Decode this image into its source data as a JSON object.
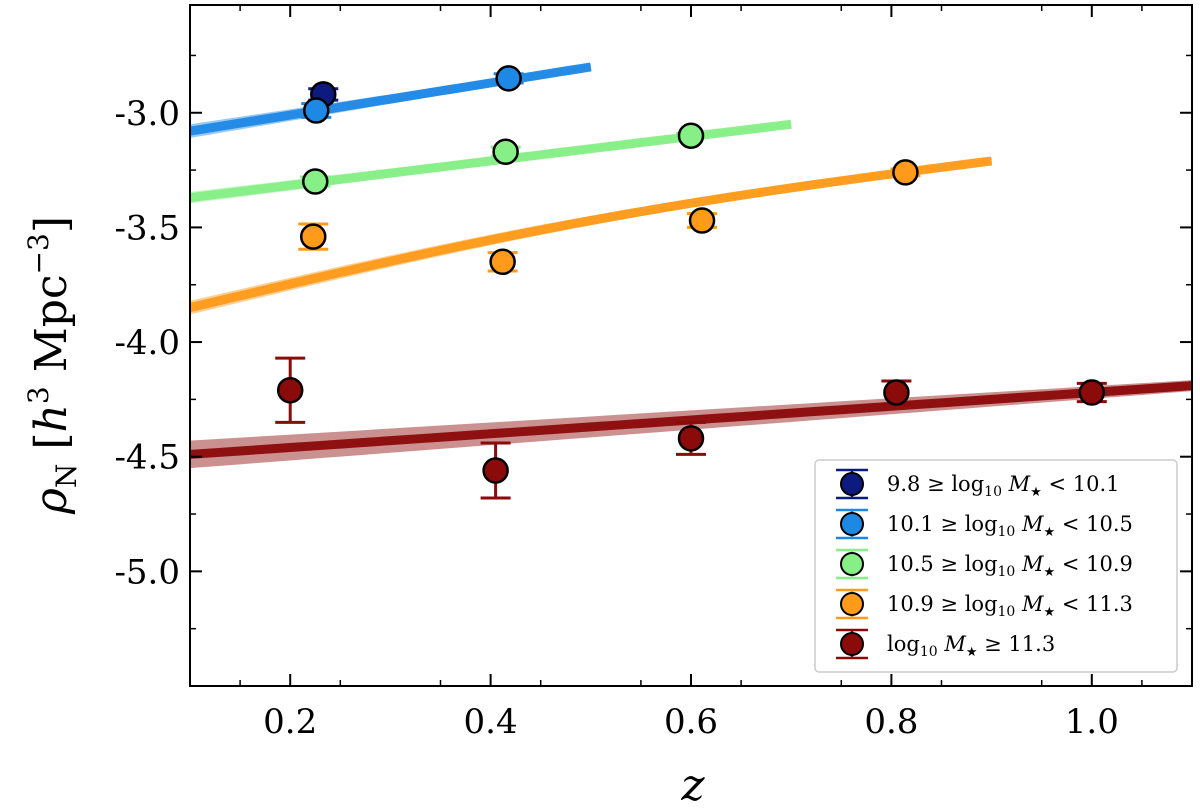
{
  "chart_data": {
    "type": "scatter",
    "xlabel": "z",
    "ylabel": "ρN [h3 Mpc−3]",
    "ylabel_parts": {
      "rho": "ρ",
      "sub": "N",
      "open": " [",
      "h": "h",
      "h_exp": "3",
      "unit": " Mpc",
      "unit_exp": "−3",
      "close": "]"
    },
    "xlim": [
      0.1,
      1.1
    ],
    "ylim": [
      -5.5,
      -2.53
    ],
    "xticks": [
      0.2,
      0.4,
      0.6,
      0.8,
      1.0
    ],
    "xtick_labels": [
      "0.2",
      "0.4",
      "0.6",
      "0.8",
      "1.0"
    ],
    "yticks": [
      -3.0,
      -3.5,
      -4.0,
      -4.5,
      -5.0
    ],
    "ytick_labels": [
      "-3.0",
      "-3.5",
      "-4.0",
      "-4.5",
      "-5.0"
    ],
    "legend_position": "lower-right",
    "series": [
      {
        "name": "9.8 ≥ log10 M★ < 10.1",
        "legend": {
          "pre": "9.8 ≥ log",
          "sub": "10",
          "mid": " M",
          "star": "★",
          "post": " < 10.1"
        },
        "color": "#0d1a80",
        "points": [
          {
            "x": 0.233,
            "y": -2.92,
            "err": 0.025
          }
        ],
        "fit": null
      },
      {
        "name": "10.1 ≥ log10 M★ < 10.5",
        "legend": {
          "pre": "10.1 ≥ log",
          "sub": "10",
          "mid": " M",
          "star": "★",
          "post": " < 10.5"
        },
        "color": "#1e88e5",
        "points": [
          {
            "x": 0.226,
            "y": -2.99,
            "err": 0.03
          },
          {
            "x": 0.418,
            "y": -2.85,
            "err": 0.02
          }
        ],
        "fit": {
          "x0": 0.1,
          "y0": -3.08,
          "x1": 0.5,
          "y1": -2.8,
          "spread": 0.03
        }
      },
      {
        "name": "10.5 ≥ log10 M★ < 10.9",
        "legend": {
          "pre": "10.5 ≥ log",
          "sub": "10",
          "mid": " M",
          "star": "★",
          "post": " < 10.9"
        },
        "color": "#86ef86",
        "points": [
          {
            "x": 0.225,
            "y": -3.3,
            "err": 0.02
          },
          {
            "x": 0.415,
            "y": -3.17,
            "err": 0.02
          },
          {
            "x": 0.6,
            "y": -3.1,
            "err": 0.01
          }
        ],
        "fit": {
          "x0": 0.1,
          "y0": -3.37,
          "x1": 0.7,
          "y1": -3.05,
          "spread": 0.025
        }
      },
      {
        "name": "10.9 ≥ log10 M★ < 11.3",
        "legend": {
          "pre": "10.9 ≥ log",
          "sub": "10",
          "mid": " M",
          "star": "★",
          "post": " < 11.3"
        },
        "color": "#ff9a1a",
        "points": [
          {
            "x": 0.223,
            "y": -3.54,
            "err": 0.055
          },
          {
            "x": 0.412,
            "y": -3.65,
            "err": 0.04
          },
          {
            "x": 0.611,
            "y": -3.47,
            "err": 0.03
          },
          {
            "x": 0.814,
            "y": -3.26,
            "err": 0.015
          }
        ],
        "fit": {
          "x0": 0.1,
          "y0": -3.85,
          "x1": 0.9,
          "y1": -3.21,
          "spread": 0.03,
          "curve": true
        }
      },
      {
        "name": "log10 M★ ≥ 11.3",
        "legend": {
          "pre": "log",
          "sub": "10",
          "mid": " M",
          "star": "★",
          "post": " ≥ 11.3"
        },
        "color": "#8b0a0a",
        "points": [
          {
            "x": 0.2,
            "y": -4.21,
            "err": 0.14
          },
          {
            "x": 0.405,
            "y": -4.56,
            "err": 0.12
          },
          {
            "x": 0.6,
            "y": -4.42,
            "err": 0.07
          },
          {
            "x": 0.805,
            "y": -4.22,
            "err": 0.05
          },
          {
            "x": 1.0,
            "y": -4.22,
            "err": 0.04
          }
        ],
        "fit": {
          "x0": 0.1,
          "y0": -4.49,
          "x1": 1.1,
          "y1": -4.19,
          "spread": 0.06
        }
      }
    ]
  }
}
